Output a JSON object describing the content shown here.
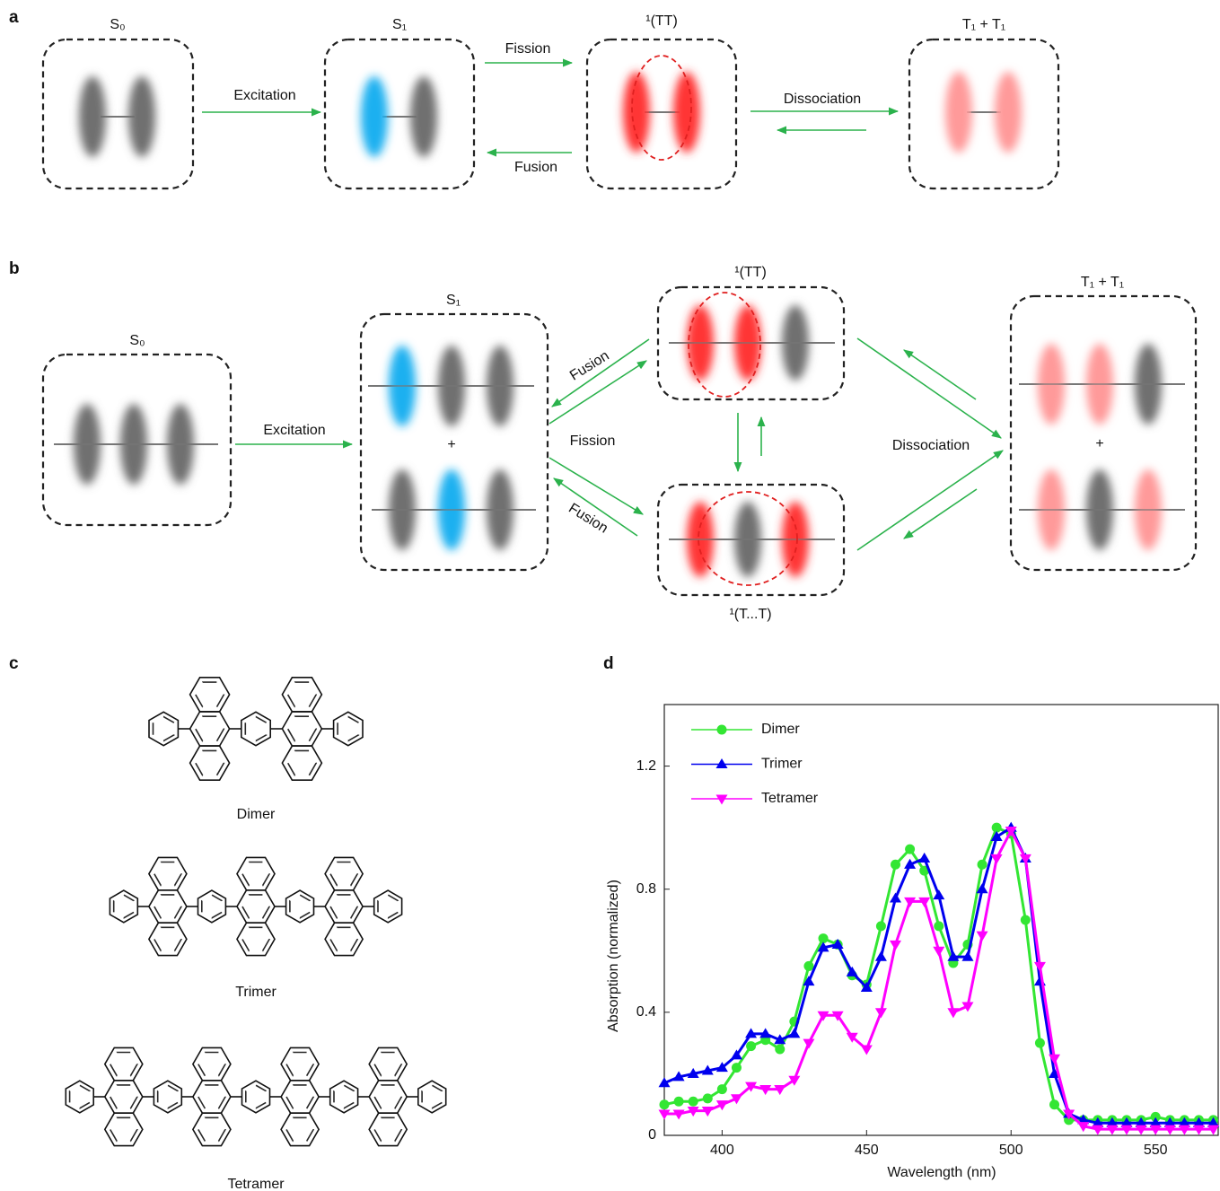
{
  "panel_labels": [
    "a",
    "b",
    "c",
    "d"
  ],
  "panel_a": {
    "states": [
      "S₀",
      "S₁",
      "¹(TT)",
      "T₁ + T₁"
    ],
    "arrows": [
      "Excitation",
      "Fission",
      "Fusion",
      "Dissociation"
    ]
  },
  "panel_b": {
    "states": [
      "S₀",
      "S₁",
      "¹(TT)",
      "¹(T...T)",
      "T₁ + T₁"
    ],
    "arrows": [
      "Excitation",
      "Fusion",
      "Fission",
      "Fusion",
      "Dissociation"
    ],
    "plus": [
      "+",
      "+"
    ]
  },
  "panel_c": {
    "molecules": [
      "Dimer",
      "Trimer",
      "Tetramer"
    ]
  },
  "chart_data": {
    "type": "line",
    "xlabel": "Wavelength (nm)",
    "ylabel": "Absorption (normalized)",
    "x": [
      380,
      385,
      390,
      395,
      400,
      405,
      410,
      415,
      420,
      425,
      430,
      435,
      440,
      445,
      450,
      455,
      460,
      465,
      470,
      475,
      480,
      485,
      490,
      495,
      500,
      505,
      510,
      515,
      520,
      525,
      530,
      535,
      540,
      545,
      550,
      555,
      560,
      565,
      570
    ],
    "series": [
      {
        "name": "Dimer",
        "color": "#33e633",
        "marker": "circle",
        "values": [
          0.1,
          0.11,
          0.11,
          0.12,
          0.15,
          0.22,
          0.29,
          0.31,
          0.28,
          0.37,
          0.55,
          0.64,
          0.62,
          0.52,
          0.49,
          0.68,
          0.88,
          0.93,
          0.86,
          0.68,
          0.56,
          0.62,
          0.88,
          1.0,
          0.98,
          0.7,
          0.3,
          0.1,
          0.05,
          0.05,
          0.05,
          0.05,
          0.05,
          0.05,
          0.06,
          0.05,
          0.05,
          0.05,
          0.05
        ]
      },
      {
        "name": "Trimer",
        "color": "#0000ee",
        "marker": "triangle-up",
        "values": [
          0.17,
          0.19,
          0.2,
          0.21,
          0.22,
          0.26,
          0.33,
          0.33,
          0.31,
          0.33,
          0.5,
          0.61,
          0.62,
          0.53,
          0.48,
          0.58,
          0.77,
          0.88,
          0.9,
          0.78,
          0.58,
          0.58,
          0.8,
          0.97,
          1.0,
          0.9,
          0.5,
          0.2,
          0.07,
          0.05,
          0.04,
          0.04,
          0.04,
          0.04,
          0.04,
          0.04,
          0.04,
          0.04,
          0.04
        ]
      },
      {
        "name": "Tetramer",
        "color": "#ff00ff",
        "marker": "triangle-down",
        "values": [
          0.07,
          0.07,
          0.08,
          0.08,
          0.1,
          0.12,
          0.16,
          0.15,
          0.15,
          0.18,
          0.3,
          0.39,
          0.39,
          0.32,
          0.28,
          0.4,
          0.62,
          0.76,
          0.76,
          0.6,
          0.4,
          0.42,
          0.65,
          0.9,
          0.99,
          0.9,
          0.55,
          0.25,
          0.07,
          0.03,
          0.02,
          0.02,
          0.02,
          0.02,
          0.02,
          0.02,
          0.02,
          0.02,
          0.02
        ]
      }
    ],
    "xlim": [
      380,
      572
    ],
    "ylim": [
      0,
      1.4
    ],
    "xticks": [
      400,
      450,
      500,
      550
    ],
    "yticks": [
      0,
      0.4,
      0.8,
      1.2
    ],
    "legend": "upper left"
  }
}
